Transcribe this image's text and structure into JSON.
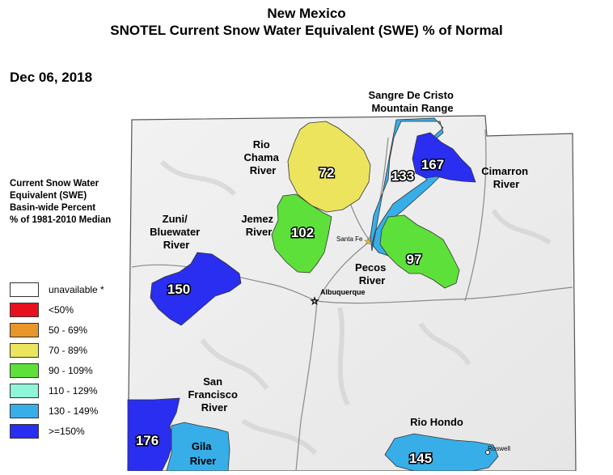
{
  "title_line1": "New Mexico",
  "title_line2": "SNOTEL Current Snow Water Equivalent (SWE) % of Normal",
  "date": "Dec 06, 2018",
  "legend": {
    "heading_lines": [
      "Current Snow Water",
      "Equivalent (SWE)",
      "Basin-wide Percent",
      "% of 1981-2010 Median"
    ],
    "items": [
      {
        "label": "unavailable *",
        "color": "#ffffff"
      },
      {
        "label": "<50%",
        "color": "#e8101e"
      },
      {
        "label": "50 - 69%",
        "color": "#e8962a"
      },
      {
        "label": "70 - 89%",
        "color": "#ece45c"
      },
      {
        "label": "90 - 109%",
        "color": "#5ee03a"
      },
      {
        "label": "110 - 129%",
        "color": "#8ef5d8"
      },
      {
        "label": "130 - 149%",
        "color": "#38aee8"
      },
      {
        "label": ">=150%",
        "color": "#2a2ef0"
      }
    ]
  },
  "basins": {
    "rio_chama": {
      "name_lines": [
        "Rio",
        "Chama",
        "River"
      ],
      "value": "72",
      "color": "#ece45c"
    },
    "jemez": {
      "name_lines": [
        "Jemez",
        "River"
      ],
      "value": "102",
      "color": "#5ee03a"
    },
    "sangre": {
      "name_lines": [
        "Sangre De Cristo",
        "Mountain Range"
      ],
      "value": "133",
      "color": "#38aee8"
    },
    "cimarron": {
      "name_lines": [
        "Cimarron",
        "River"
      ],
      "value": "167",
      "color": "#2a2ef0"
    },
    "pecos": {
      "name_lines": [
        "Pecos",
        "River"
      ],
      "value": "97",
      "color": "#5ee03a"
    },
    "zuni": {
      "name_lines": [
        "Zuni/",
        "Bluewater",
        "River"
      ],
      "value": "150",
      "color": "#2a2ef0"
    },
    "san_francisco": {
      "name_lines": [
        "San",
        "Francisco",
        "River"
      ],
      "value": "176",
      "color": "#2a2ef0"
    },
    "gila": {
      "name_lines": [
        "Gila",
        "River"
      ],
      "value": "",
      "color": "#38aee8"
    },
    "rio_hondo": {
      "name_lines": [
        "Rio Hondo"
      ],
      "value": "145",
      "color": "#38aee8"
    }
  },
  "cities": {
    "santa_fe": "Santa Fe",
    "albuquerque": "Albuquerque",
    "roswell": "Roswell"
  }
}
